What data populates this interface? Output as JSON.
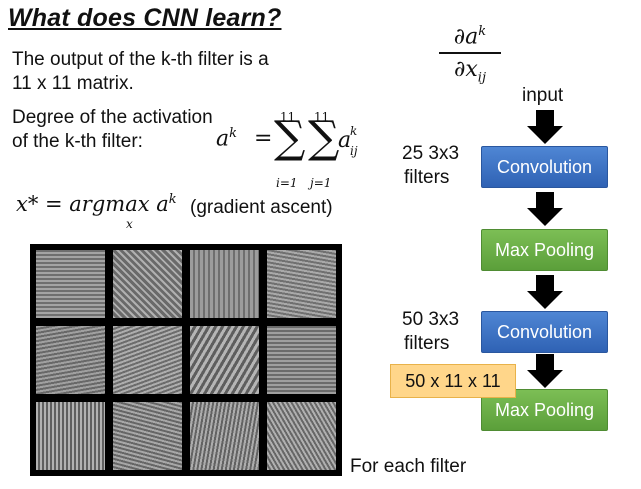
{
  "title": "What does CNN learn?",
  "text": {
    "line1": "The output of the k-th filter is a",
    "line2": "11 x 11 matrix.",
    "line3": "Degree of the activation",
    "line4": "of the k-th filter:",
    "gradient": "(gradient ascent)",
    "for_each": "For each filter"
  },
  "math": {
    "ak": "a",
    "k_sup": "k",
    "eq": "=",
    "sum_upper": "11",
    "sum_i_lower": "i=1",
    "sum_j_lower": "j=1",
    "aij_base": "a",
    "aij_sup": "k",
    "aij_sub": "ij",
    "argmax_expr": "x* = argmax a",
    "argmax_sup": "k",
    "argmax_sub": "x",
    "deriv_num": "∂a",
    "deriv_num_sup": "k",
    "deriv_den": "∂x",
    "deriv_den_sub": "ij"
  },
  "flow": {
    "input_label": "input",
    "filters1": [
      "25 3x3",
      "filters"
    ],
    "filters2": [
      "50 3x3",
      "filters"
    ],
    "boxes": [
      "Convolution",
      "Max Pooling",
      "Convolution",
      "Max Pooling"
    ],
    "badge": "50 x 11 x 11"
  },
  "colors": {
    "conv": "#3b6fc1",
    "pool": "#69ad45",
    "badge": "#ffd68a"
  }
}
